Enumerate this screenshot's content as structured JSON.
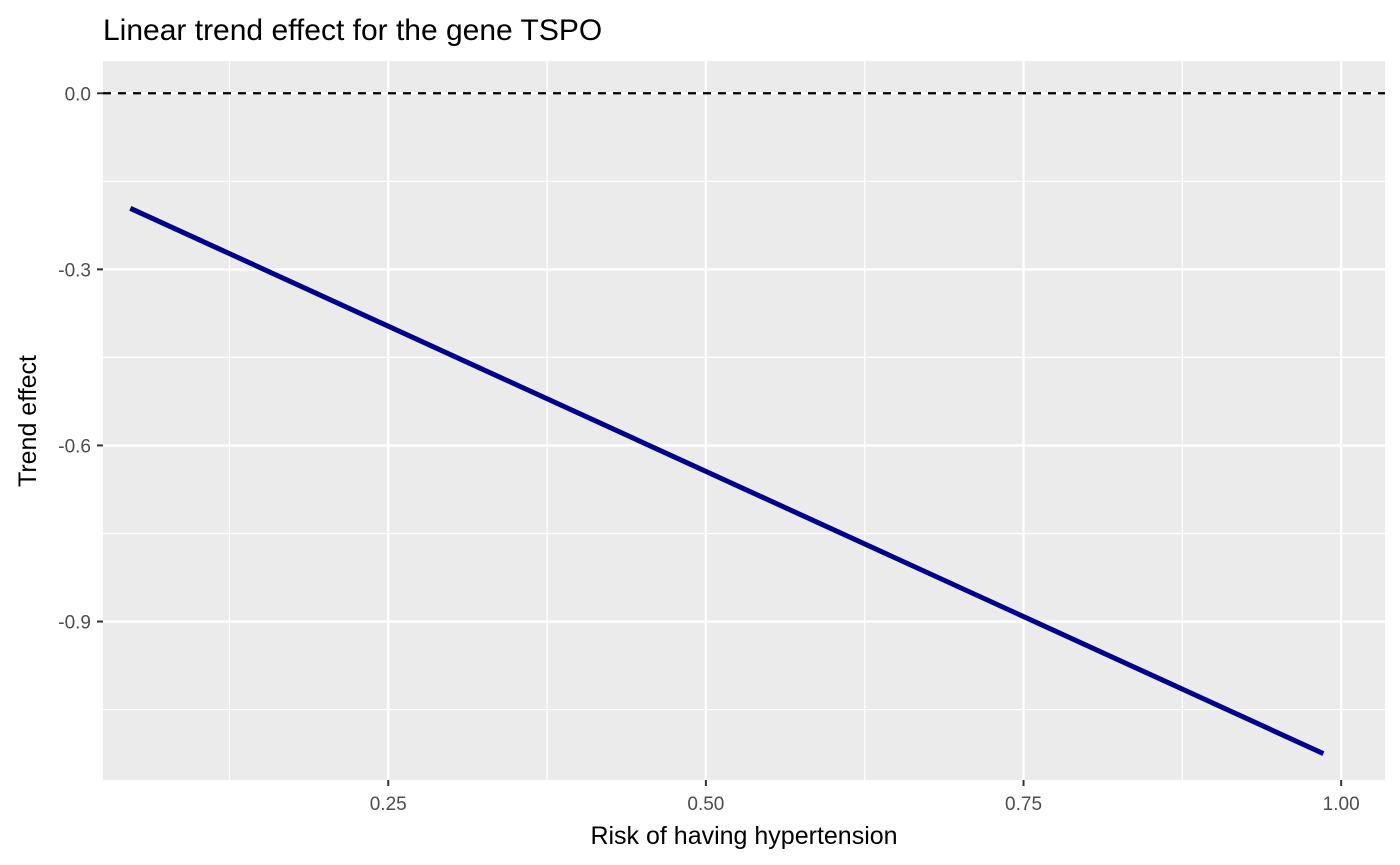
{
  "chart_data": {
    "type": "line",
    "title": "Linear trend effect for the gene TSPO",
    "xlabel": "Risk of having hypertension",
    "ylabel": "Trend effect",
    "xlim": [
      0.0255,
      1.0345
    ],
    "ylim": [
      -1.17,
      0.055
    ],
    "x_ticks": [
      {
        "value": 0.25,
        "label": "0.25"
      },
      {
        "value": 0.5,
        "label": "0.50"
      },
      {
        "value": 0.75,
        "label": "0.75"
      },
      {
        "value": 1.0,
        "label": "1.00"
      }
    ],
    "y_ticks": [
      {
        "value": 0.0,
        "label": "0.0"
      },
      {
        "value": -0.3,
        "label": "-0.3"
      },
      {
        "value": -0.6,
        "label": "-0.6"
      },
      {
        "value": -0.9,
        "label": "-0.9"
      }
    ],
    "x_minor_ticks": [
      0.125,
      0.375,
      0.625,
      0.875
    ],
    "y_minor_ticks": [
      -0.15,
      -0.45,
      -0.75,
      -1.05
    ],
    "series": [
      {
        "x": [
          0.047,
          0.986
        ],
        "y": [
          -0.196,
          -1.125
        ],
        "color": "#00008B"
      }
    ],
    "reference_line": {
      "y": 0.0,
      "style": "dashed",
      "color": "#000000"
    },
    "grid": true,
    "panel_background": "#EBEBEB",
    "grid_color": "#FFFFFF"
  }
}
